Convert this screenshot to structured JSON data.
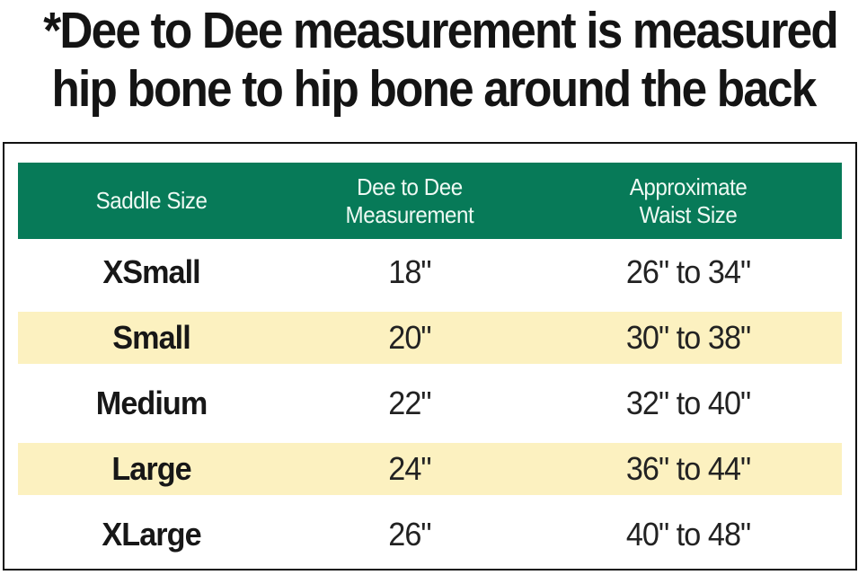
{
  "note": {
    "line1": "*Dee to Dee measurement is measured",
    "line2": "hip bone to hip bone around the back"
  },
  "table": {
    "headers": [
      "Saddle Size",
      "Dee to Dee\nMeasurement",
      "Approximate\nWaist Size"
    ],
    "rows": [
      {
        "size": "XSmall",
        "dee": "18\"",
        "waist": "26\" to 34\""
      },
      {
        "size": "Small",
        "dee": "20\"",
        "waist": "30\" to 38\""
      },
      {
        "size": "Medium",
        "dee": "22\"",
        "waist": "32\" to 40\""
      },
      {
        "size": "Large",
        "dee": "24\"",
        "waist": "36\" to 44\""
      },
      {
        "size": "XLarge",
        "dee": "26\"",
        "waist": "40\" to 48\""
      }
    ]
  },
  "colors": {
    "header_bg": "#077a58",
    "header_text": "#eef9f3",
    "alt_row_bg": "#fcf1c0",
    "text": "#1b1b1b",
    "border": "#111111"
  },
  "chart_data": {
    "type": "table",
    "title": "*Dee to Dee measurement is measured hip bone to hip bone around the back",
    "columns": [
      "Saddle Size",
      "Dee to Dee Measurement",
      "Approximate Waist Size"
    ],
    "rows": [
      [
        "XSmall",
        "18\"",
        "26\" to 34\""
      ],
      [
        "Small",
        "20\"",
        "30\" to 38\""
      ],
      [
        "Medium",
        "22\"",
        "32\" to 40\""
      ],
      [
        "Large",
        "24\"",
        "36\" to 44\""
      ],
      [
        "XLarge",
        "26\"",
        "40\" to 48\""
      ]
    ],
    "layout": {
      "header_style": "green band, white text",
      "alternating_rows": "rows Small and Large highlighted cream",
      "grid": false
    }
  }
}
